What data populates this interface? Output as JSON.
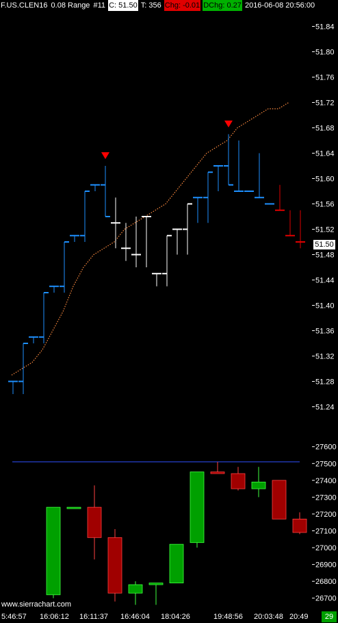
{
  "header": {
    "symbol": "F.US.CLEN16",
    "bar_type": "0.08 Range",
    "bar_num": "#11",
    "close": "C: 51.50",
    "ticks": "T: 356",
    "chg": "Chg: -0.01",
    "dchg": "DChg: 0.27",
    "datetime": "2016-06-08 20:56:00"
  },
  "watermark": "www.sierrachart.com",
  "scroll_badge": "29",
  "price_badge": "51.50",
  "colors": {
    "up_bar": "#1e90ff",
    "neutral_bar": "#ffffff",
    "down_bar": "#e00000",
    "moving_average": "#ff8c40",
    "marker": "#ff0000",
    "volume_up": "#00a000",
    "volume_down": "#a00000",
    "reference_line": "#3050ff"
  },
  "x_labels": [
    "5:46:57",
    "16:06:12",
    "16:11:37",
    "16:46:04",
    "18:04:26",
    "19:48:56",
    "20:03:48",
    "20:49"
  ],
  "chart_data": [
    {
      "type": "ohlc",
      "name": "price",
      "y_ticks": [
        "51.84",
        "51.80",
        "51.76",
        "51.72",
        "51.68",
        "51.64",
        "51.60",
        "51.56",
        "51.52",
        "51.48",
        "51.44",
        "51.40",
        "51.36",
        "51.32",
        "51.28",
        "51.24"
      ],
      "ylim": [
        51.22,
        51.86
      ],
      "bars": [
        {
          "o": 51.28,
          "h": 51.28,
          "l": 51.26,
          "c": 51.28,
          "color": "up"
        },
        {
          "o": 51.28,
          "h": 51.34,
          "l": 51.26,
          "c": 51.34,
          "color": "up"
        },
        {
          "o": 51.35,
          "h": 51.35,
          "l": 51.34,
          "c": 51.35,
          "color": "up"
        },
        {
          "o": 51.35,
          "h": 51.42,
          "l": 51.34,
          "c": 51.42,
          "color": "up"
        },
        {
          "o": 51.43,
          "h": 51.43,
          "l": 51.42,
          "c": 51.43,
          "color": "up"
        },
        {
          "o": 51.43,
          "h": 51.5,
          "l": 51.42,
          "c": 51.5,
          "color": "up"
        },
        {
          "o": 51.51,
          "h": 51.51,
          "l": 51.5,
          "c": 51.51,
          "color": "up"
        },
        {
          "o": 51.51,
          "h": 51.58,
          "l": 51.5,
          "c": 51.58,
          "color": "up"
        },
        {
          "o": 51.59,
          "h": 51.59,
          "l": 51.58,
          "c": 51.59,
          "color": "up"
        },
        {
          "o": 51.59,
          "h": 51.62,
          "l": 51.54,
          "c": 51.54,
          "color": "up"
        },
        {
          "o": 51.53,
          "h": 51.57,
          "l": 51.49,
          "c": 51.53,
          "color": "neutral"
        },
        {
          "o": 51.49,
          "h": 51.53,
          "l": 51.47,
          "c": 51.49,
          "color": "neutral"
        },
        {
          "o": 51.48,
          "h": 51.54,
          "l": 51.46,
          "c": 51.48,
          "color": "neutral"
        },
        {
          "o": 51.54,
          "h": 51.54,
          "l": 51.46,
          "c": 51.54,
          "color": "neutral"
        },
        {
          "o": 51.45,
          "h": 51.45,
          "l": 51.43,
          "c": 51.45,
          "color": "neutral"
        },
        {
          "o": 51.45,
          "h": 51.51,
          "l": 51.43,
          "c": 51.51,
          "color": "neutral"
        },
        {
          "o": 51.52,
          "h": 51.52,
          "l": 51.48,
          "c": 51.52,
          "color": "neutral"
        },
        {
          "o": 51.52,
          "h": 51.56,
          "l": 51.48,
          "c": 51.56,
          "color": "neutral"
        },
        {
          "o": 51.57,
          "h": 51.57,
          "l": 51.53,
          "c": 51.57,
          "color": "up"
        },
        {
          "o": 51.57,
          "h": 51.61,
          "l": 51.53,
          "c": 51.61,
          "color": "up"
        },
        {
          "o": 51.62,
          "h": 51.62,
          "l": 51.58,
          "c": 51.62,
          "color": "up"
        },
        {
          "o": 51.62,
          "h": 51.67,
          "l": 51.59,
          "c": 51.59,
          "color": "up"
        },
        {
          "o": 51.58,
          "h": 51.66,
          "l": 51.58,
          "c": 51.58,
          "color": "up"
        },
        {
          "o": 51.58,
          "h": 51.58,
          "l": 51.58,
          "c": 51.58,
          "color": "up"
        },
        {
          "o": 51.57,
          "h": 51.64,
          "l": 51.57,
          "c": 51.57,
          "color": "up"
        },
        {
          "o": 51.56,
          "h": 51.56,
          "l": 51.56,
          "c": 51.56,
          "color": "up"
        },
        {
          "o": 51.55,
          "h": 51.59,
          "l": 51.55,
          "c": 51.55,
          "color": "down"
        },
        {
          "o": 51.51,
          "h": 51.55,
          "l": 51.51,
          "c": 51.51,
          "color": "down"
        },
        {
          "o": 51.5,
          "h": 51.55,
          "l": 51.49,
          "c": 51.5,
          "color": "down"
        }
      ],
      "moving_average": [
        51.29,
        51.3,
        51.31,
        51.33,
        51.36,
        51.39,
        51.43,
        51.46,
        51.48,
        51.49,
        51.5,
        51.52,
        51.53,
        51.54,
        51.55,
        51.56,
        51.58,
        51.6,
        51.62,
        51.64,
        51.65,
        51.66,
        51.68,
        51.69,
        51.7,
        51.71,
        51.71,
        51.72
      ],
      "markers": [
        {
          "bar": 9,
          "price": 51.635
        },
        {
          "bar": 21,
          "price": 51.685
        }
      ]
    },
    {
      "type": "candlestick",
      "name": "volume-study",
      "y_ticks": [
        "27600",
        "27500",
        "27400",
        "27300",
        "27200",
        "27100",
        "27000",
        "26900",
        "26800",
        "26700"
      ],
      "ylim": [
        26650,
        27660
      ],
      "reference_line": 27510,
      "candles": [
        {
          "o": 26720,
          "h": 27240,
          "l": 26700,
          "c": 27240,
          "color": "up"
        },
        {
          "o": 27240,
          "h": 27240,
          "l": 27240,
          "c": 27240,
          "color": "up"
        },
        {
          "o": 27240,
          "h": 27370,
          "l": 26930,
          "c": 27060,
          "color": "down"
        },
        {
          "o": 27060,
          "h": 27110,
          "l": 26680,
          "c": 26730,
          "color": "down"
        },
        {
          "o": 26730,
          "h": 26800,
          "l": 26660,
          "c": 26780,
          "color": "up"
        },
        {
          "o": 26780,
          "h": 26790,
          "l": 26660,
          "c": 26790,
          "color": "up"
        },
        {
          "o": 26790,
          "h": 27020,
          "l": 26790,
          "c": 27020,
          "color": "up"
        },
        {
          "o": 27030,
          "h": 27450,
          "l": 27000,
          "c": 27450,
          "color": "up"
        },
        {
          "o": 27450,
          "h": 27510,
          "l": 27440,
          "c": 27440,
          "color": "down"
        },
        {
          "o": 27440,
          "h": 27480,
          "l": 27340,
          "c": 27350,
          "color": "down"
        },
        {
          "o": 27350,
          "h": 27480,
          "l": 27300,
          "c": 27390,
          "color": "up"
        },
        {
          "o": 27400,
          "h": 27400,
          "l": 27170,
          "c": 27170,
          "color": "down"
        },
        {
          "o": 27170,
          "h": 27210,
          "l": 27080,
          "c": 27090,
          "color": "down"
        }
      ]
    }
  ]
}
